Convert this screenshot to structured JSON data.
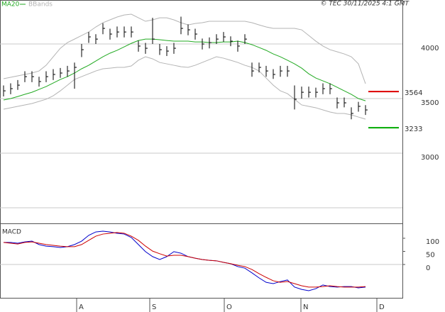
{
  "chart_data": {
    "type": "ohlc",
    "source": "© TEC 30/11/2025 4:1 GMT",
    "legend": [
      "MA20",
      "BBands"
    ],
    "categories": [
      null,
      null,
      null,
      null,
      null,
      null,
      null,
      null,
      null,
      null,
      null,
      null,
      null,
      null,
      null,
      null,
      null,
      null,
      null,
      null,
      null,
      null,
      null,
      null,
      null,
      null,
      null,
      null,
      null,
      null,
      null,
      null,
      null,
      null,
      null,
      null,
      null,
      null,
      null,
      null,
      null,
      null,
      null,
      null,
      null,
      null,
      null,
      null,
      null,
      null,
      null,
      null
    ],
    "xticks": [
      {
        "value": 10.3,
        "label": "A"
      },
      {
        "value": 20.6,
        "label": "S"
      },
      {
        "value": 31.1,
        "label": "O"
      },
      {
        "value": 41.9,
        "label": "N"
      },
      {
        "value": 52.6,
        "label": "D"
      }
    ],
    "xlim": [
      -0.5,
      56.2
    ],
    "ylim": [
      2357,
      4403
    ],
    "yticks": [
      4000,
      3500,
      3000
    ],
    "color": "#000000",
    "high": [
      3620,
      3640,
      3670,
      3750,
      3750,
      3700,
      3750,
      3770,
      3780,
      3800,
      3830,
      4000,
      4110,
      4090,
      4190,
      4140,
      4160,
      4160,
      4160,
      4030,
      4010,
      4240,
      4000,
      3980,
      4010,
      4250,
      4180,
      4140,
      4050,
      4060,
      4090,
      4110,
      4070,
      4030,
      4090,
      3830,
      3830,
      3800,
      3770,
      3800,
      3800,
      3620,
      3610,
      3610,
      3600,
      3640,
      3640,
      3510,
      3510,
      3420,
      3470,
      3440
    ],
    "low": [
      3520,
      3540,
      3580,
      3650,
      3650,
      3610,
      3650,
      3670,
      3690,
      3700,
      3590,
      3880,
      4010,
      4000,
      4090,
      4040,
      4060,
      4060,
      4060,
      3930,
      3910,
      4000,
      3900,
      3890,
      3910,
      4090,
      4080,
      4040,
      3950,
      3960,
      4000,
      4020,
      3980,
      3930,
      4000,
      3700,
      3740,
      3700,
      3680,
      3700,
      3700,
      3400,
      3500,
      3510,
      3510,
      3540,
      3540,
      3410,
      3420,
      3310,
      3380,
      3350
    ],
    "close": [
      3571,
      3591,
      3623,
      3701,
      3701,
      3656,
      3701,
      3721,
      3734,
      3753,
      3786,
      3948,
      4065,
      4045,
      4143,
      4091,
      4110,
      4110,
      4110,
      3981,
      3961,
      4045,
      3948,
      3935,
      3961,
      4143,
      4130,
      4091,
      4000,
      4013,
      4045,
      4065,
      4026,
      3981,
      4045,
      3753,
      3786,
      3753,
      3721,
      3753,
      3753,
      3494,
      3558,
      3558,
      3558,
      3591,
      3591,
      3461,
      3461,
      3364,
      3429,
      3396
    ],
    "series": [
      {
        "name": "MA20",
        "color": "#22aa22",
        "values": [
          3487,
          3500,
          3519,
          3539,
          3558,
          3584,
          3610,
          3643,
          3675,
          3701,
          3734,
          3773,
          3805,
          3844,
          3883,
          3916,
          3942,
          3974,
          4006,
          4032,
          4045,
          4045,
          4039,
          4032,
          4026,
          4026,
          4026,
          4019,
          4019,
          4013,
          4013,
          4019,
          4019,
          4026,
          4013,
          3994,
          3968,
          3942,
          3909,
          3883,
          3851,
          3818,
          3779,
          3727,
          3688,
          3662,
          3636,
          3604,
          3571,
          3539,
          3500,
          3480
        ]
      },
      {
        "name": "BBands",
        "color": "#b4b4b4",
        "values": [
          3682,
          3695,
          3708,
          3721,
          3734,
          3753,
          3805,
          3883,
          3961,
          4013,
          4045,
          4078,
          4110,
          4156,
          4195,
          4221,
          4247,
          4266,
          4273,
          4240,
          4208,
          4221,
          4240,
          4240,
          4221,
          4195,
          4175,
          4188,
          4195,
          4208,
          4208,
          4208,
          4208,
          4208,
          4208,
          4195,
          4175,
          4156,
          4143,
          4143,
          4143,
          4143,
          4130,
          4078,
          4026,
          3981,
          3948,
          3929,
          3909,
          3883,
          3818,
          3636
        ],
        "lower": [
          3403,
          3416,
          3429,
          3442,
          3455,
          3474,
          3494,
          3526,
          3571,
          3623,
          3675,
          3701,
          3727,
          3753,
          3773,
          3779,
          3786,
          3786,
          3799,
          3851,
          3883,
          3864,
          3831,
          3818,
          3805,
          3792,
          3786,
          3805,
          3831,
          3857,
          3883,
          3870,
          3851,
          3831,
          3805,
          3786,
          3753,
          3688,
          3623,
          3571,
          3545,
          3494,
          3442,
          3429,
          3416,
          3396,
          3377,
          3364,
          3364,
          3351,
          3331,
          3312
        ]
      }
    ],
    "levels": [
      {
        "value": 3564,
        "color": "#dd0000"
      },
      {
        "value": 3233,
        "color": "#00aa00"
      }
    ],
    "macd": {
      "title": "MACD",
      "ylim": [
        -127,
        154
      ],
      "yticks": [
        100,
        50,
        0
      ],
      "series": [
        {
          "color": "#0000cc",
          "values": [
            84,
            84,
            81,
            86,
            89,
            76,
            70,
            68,
            65,
            68,
            76,
            89,
            111,
            124,
            127,
            124,
            119,
            116,
            103,
            76,
            49,
            30,
            19,
            30,
            49,
            43,
            30,
            24,
            19,
            16,
            14,
            8,
            3,
            -8,
            -14,
            -32,
            -51,
            -68,
            -73,
            -65,
            -59,
            -86,
            -95,
            -100,
            -92,
            -78,
            -84,
            -86,
            -84,
            -84,
            -89,
            -86
          ]
        },
        {
          "color": "#cc0000",
          "values": [
            84,
            81,
            78,
            84,
            86,
            81,
            76,
            73,
            70,
            68,
            68,
            76,
            92,
            108,
            116,
            119,
            122,
            119,
            108,
            92,
            70,
            51,
            41,
            32,
            35,
            35,
            30,
            24,
            19,
            16,
            14,
            8,
            3,
            -3,
            -8,
            -19,
            -35,
            -49,
            -62,
            -68,
            -65,
            -73,
            -81,
            -86,
            -86,
            -84,
            -81,
            -84,
            -86,
            -86,
            -86,
            -84
          ]
        }
      ]
    }
  }
}
